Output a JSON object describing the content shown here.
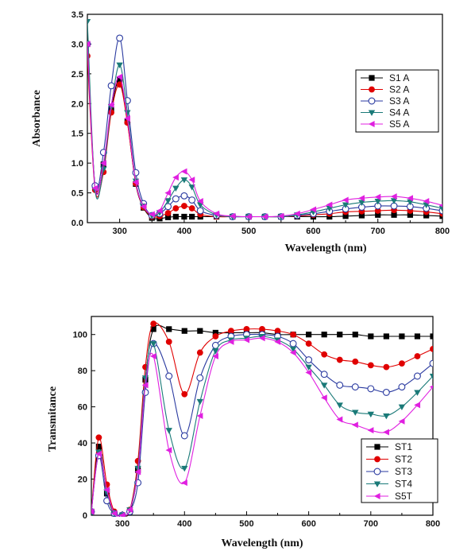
{
  "chart_data": [
    {
      "type": "line",
      "xlabel": "Wavelength (nm)",
      "ylabel": "Absorbance",
      "xlim": [
        250,
        800
      ],
      "ylim": [
        0.0,
        3.5
      ],
      "xticks": [
        300,
        400,
        500,
        600,
        700,
        800
      ],
      "yticks": [
        0.0,
        0.5,
        1.0,
        1.5,
        2.0,
        2.5,
        3.0,
        3.5
      ],
      "ytick_labels": [
        "0.0",
        "0.5",
        "1.0",
        "1.5",
        "2.0",
        "2.5",
        "3.0",
        "3.5"
      ],
      "grid": false,
      "legend_position": "right",
      "x": [
        250,
        262,
        275,
        287,
        300,
        312,
        325,
        337,
        350,
        362,
        375,
        387,
        400,
        412,
        425,
        450,
        475,
        500,
        525,
        550,
        575,
        600,
        625,
        650,
        675,
        700,
        725,
        750,
        775,
        800
      ],
      "series": [
        {
          "name": "S1 A",
          "color": "#000000",
          "marker": "square",
          "values": [
            3.0,
            0.6,
            0.98,
            1.9,
            2.4,
            1.7,
            0.65,
            0.25,
            0.08,
            0.07,
            0.09,
            0.1,
            0.1,
            0.1,
            0.1,
            0.1,
            0.1,
            0.1,
            0.1,
            0.1,
            0.1,
            0.1,
            0.1,
            0.11,
            0.12,
            0.13,
            0.13,
            0.13,
            0.12,
            0.11
          ]
        },
        {
          "name": "S2 A",
          "color": "#e00000",
          "marker": "circle",
          "values": [
            2.8,
            0.55,
            0.85,
            1.85,
            2.32,
            1.68,
            0.66,
            0.26,
            0.1,
            0.11,
            0.16,
            0.24,
            0.28,
            0.24,
            0.14,
            0.1,
            0.1,
            0.1,
            0.1,
            0.1,
            0.11,
            0.13,
            0.15,
            0.18,
            0.19,
            0.2,
            0.21,
            0.2,
            0.18,
            0.15
          ]
        },
        {
          "name": "S3 A",
          "color": "#2a3aa0",
          "marker": "circle-open",
          "values": [
            3.0,
            0.62,
            1.18,
            2.3,
            3.1,
            2.05,
            0.84,
            0.32,
            0.12,
            0.15,
            0.27,
            0.4,
            0.45,
            0.38,
            0.2,
            0.12,
            0.1,
            0.1,
            0.1,
            0.1,
            0.12,
            0.15,
            0.19,
            0.23,
            0.26,
            0.28,
            0.28,
            0.27,
            0.24,
            0.2
          ]
        },
        {
          "name": "S4 A",
          "color": "#1a7a78",
          "marker": "triangle-down",
          "values": [
            3.38,
            0.55,
            0.9,
            1.95,
            2.65,
            1.85,
            0.7,
            0.28,
            0.12,
            0.17,
            0.37,
            0.58,
            0.72,
            0.6,
            0.3,
            0.13,
            0.1,
            0.1,
            0.1,
            0.1,
            0.13,
            0.18,
            0.24,
            0.3,
            0.34,
            0.36,
            0.37,
            0.35,
            0.3,
            0.24
          ]
        },
        {
          "name": "S5 A",
          "color": "#e020e0",
          "marker": "triangle-left",
          "values": [
            3.0,
            0.58,
            1.0,
            1.98,
            2.45,
            1.75,
            0.68,
            0.27,
            0.14,
            0.2,
            0.5,
            0.76,
            0.86,
            0.72,
            0.36,
            0.15,
            0.11,
            0.1,
            0.1,
            0.11,
            0.15,
            0.22,
            0.3,
            0.38,
            0.41,
            0.43,
            0.44,
            0.41,
            0.36,
            0.29
          ]
        }
      ]
    },
    {
      "type": "line",
      "xlabel": "Wavelength (nm)",
      "ylabel": "Transmitance",
      "xlim": [
        250,
        800
      ],
      "ylim": [
        0,
        110
      ],
      "xticks": [
        300,
        400,
        500,
        600,
        700,
        800
      ],
      "yticks": [
        0,
        20,
        40,
        60,
        80,
        100
      ],
      "grid": false,
      "legend_position": "bottom-left",
      "x": [
        250,
        262,
        275,
        287,
        300,
        312,
        325,
        337,
        350,
        375,
        400,
        425,
        450,
        475,
        500,
        525,
        550,
        575,
        600,
        625,
        650,
        675,
        700,
        725,
        750,
        775,
        800
      ],
      "series": [
        {
          "name": "ST1",
          "color": "#000000",
          "marker": "square",
          "values": [
            2,
            38,
            12,
            1,
            0,
            2,
            25,
            75,
            103,
            103,
            102,
            102,
            101,
            101,
            101,
            101,
            100,
            100,
            100,
            100,
            100,
            100,
            99,
            99,
            99,
            99,
            99
          ]
        },
        {
          "name": "ST2",
          "color": "#e00000",
          "marker": "circle",
          "values": [
            2,
            43,
            17,
            2,
            0,
            3,
            30,
            82,
            106,
            96,
            67,
            90,
            99,
            102,
            103,
            103,
            102,
            100,
            95,
            89,
            86,
            85,
            83,
            82,
            84,
            88,
            92
          ]
        },
        {
          "name": "ST3",
          "color": "#2a3aa0",
          "marker": "circle-open",
          "values": [
            2,
            33,
            8,
            1,
            0,
            2,
            18,
            68,
            95,
            77,
            44,
            76,
            94,
            99,
            100,
            100,
            99,
            95,
            86,
            78,
            72,
            71,
            70,
            68,
            71,
            77,
            84
          ]
        },
        {
          "name": "ST4",
          "color": "#1a7a78",
          "marker": "triangle-down",
          "values": [
            2,
            35,
            13,
            1,
            0,
            3,
            26,
            76,
            95,
            47,
            26,
            63,
            91,
            97,
            98,
            99,
            97,
            92,
            82,
            72,
            61,
            57,
            56,
            55,
            60,
            68,
            77
          ]
        },
        {
          "name": "S5T",
          "color": "#e020e0",
          "marker": "triangle-left",
          "values": [
            2,
            34,
            14,
            1,
            0,
            3,
            24,
            72,
            88,
            36,
            18,
            55,
            88,
            96,
            97,
            98,
            96,
            90,
            79,
            65,
            53,
            50,
            47,
            46,
            52,
            61,
            71
          ]
        }
      ]
    }
  ]
}
